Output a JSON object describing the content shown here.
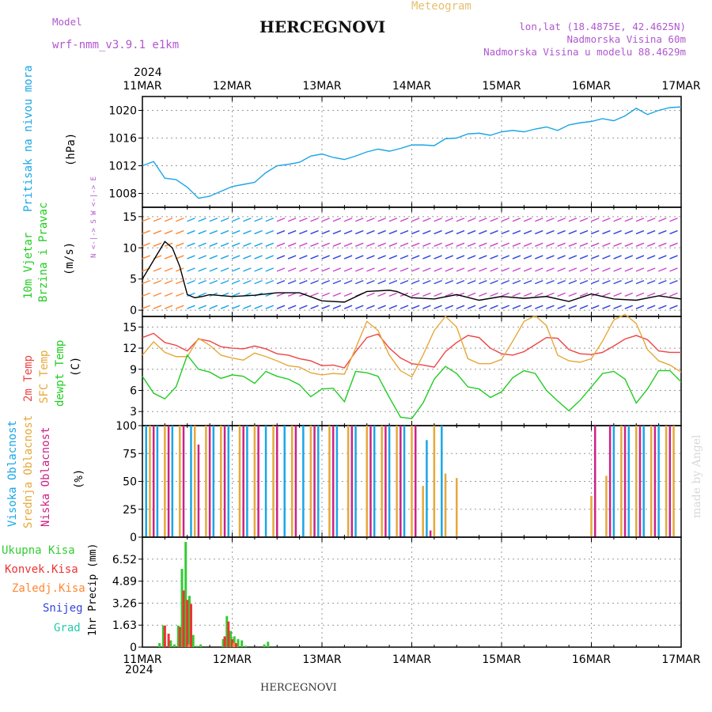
{
  "header": {
    "model_label": "Model",
    "model_name": "wrf-nmm_v3.9.1 e1km",
    "title": "HERCEGNOVI",
    "meteogram_label": "Meteogram",
    "coords": "lon,lat (18.4875E, 42.4625N)",
    "altitude": "Nadmorska Visina 60m",
    "model_altitude": "Nadmorska Visina u modelu 88.4629m"
  },
  "footer": {
    "station": "HERCEGNOVI"
  },
  "watermark": "made by Angel",
  "colors": {
    "pressure": "#1aa6e6",
    "wind_green": "#22cc22",
    "wind_purple": "#cc44cc",
    "temp": "#ee4444",
    "sfc": "#e6a83a",
    "dew": "#22cc22",
    "high_cloud": "#1aa6e6",
    "mid_cloud": "#e6a83a",
    "low_cloud": "#cc2288",
    "total_precip": "#33cc33",
    "conv_precip": "#ee3333",
    "frozen_precip": "#ff8833",
    "snow": "#3344dd",
    "graupel": "#22ccaa"
  },
  "axes": {
    "year_top": "2024",
    "year_bottom": "2024",
    "dates": [
      "11MAR",
      "12MAR",
      "13MAR",
      "14MAR",
      "15MAR",
      "16MAR",
      "17MAR"
    ]
  },
  "labels": {
    "pressure_1": "Pritisak na nivou mora",
    "pressure_unit": "(hPa)",
    "wind_1": "10m Vjetar",
    "wind_2": "Brzina i Pravac",
    "wind_unit": "(m/s)",
    "compass": "N <-|-> S   W <-|-> E",
    "temp_1": "2m Temp",
    "temp_2": "SFC Temp",
    "temp_3": "dewpt Temp",
    "temp_unit": "(C)",
    "cloud_1": "Visoka Oblacnost",
    "cloud_2": "Srednja Oblacnost",
    "cloud_3": "Niska Oblacnost",
    "cloud_unit": "(%)",
    "precip_1": "Ukupna Kisa",
    "precip_2": "Konvek.Kisa",
    "precip_3": "Zaledj.Kisa",
    "precip_4": "Snijeg",
    "precip_5": "Grad",
    "precip_unit": "1hr Precip (mm)"
  },
  "chart_data": [
    {
      "type": "line",
      "name": "pressure",
      "x_unit": "hours since 11MAR 00Z",
      "ylim": [
        1006,
        1022
      ],
      "yticks": [
        1008,
        1012,
        1016,
        1020
      ],
      "grid": true,
      "series": [
        {
          "name": "Pritisak na nivou mora",
          "x": [
            0,
            3,
            6,
            9,
            12,
            15,
            18,
            21,
            24,
            27,
            30,
            33,
            36,
            39,
            42,
            45,
            48,
            51,
            54,
            57,
            60,
            63,
            66,
            69,
            72,
            75,
            78,
            81,
            84,
            87,
            90,
            93,
            96,
            99,
            102,
            105,
            108,
            111,
            114,
            117,
            120,
            123,
            126,
            129,
            132,
            135,
            138,
            141,
            144
          ],
          "values": [
            1012,
            1012.6,
            1010.2,
            1010.0,
            1008.9,
            1007.3,
            1007.6,
            1008.3,
            1009.0,
            1009.3,
            1009.6,
            1011.0,
            1012.0,
            1012.2,
            1012.5,
            1013.4,
            1013.7,
            1013.2,
            1012.9,
            1013.4,
            1014.0,
            1014.4,
            1014.1,
            1014.5,
            1015.0,
            1015.0,
            1014.9,
            1015.9,
            1016.0,
            1016.6,
            1016.7,
            1016.4,
            1016.9,
            1017.1,
            1016.9,
            1017.3,
            1017.6,
            1017.1,
            1017.9,
            1018.2,
            1018.4,
            1018.8,
            1018.5,
            1019.2,
            1020.3,
            1019.4,
            1020.0,
            1020.4,
            1020.5
          ]
        }
      ]
    },
    {
      "type": "line",
      "name": "wind",
      "x_unit": "hours since 11MAR 00Z",
      "ylim": [
        -1,
        16.5
      ],
      "yticks": [
        0,
        5,
        10,
        15
      ],
      "grid": true,
      "series": [
        {
          "name": "10m wind speed",
          "x": [
            0,
            3,
            6,
            8,
            10,
            12,
            14,
            16,
            18,
            24,
            30,
            36,
            42,
            48,
            54,
            60,
            66,
            68,
            70,
            72,
            78,
            84,
            90,
            96,
            102,
            108,
            114,
            120,
            126,
            132,
            138,
            144
          ],
          "values": [
            5,
            8,
            11,
            10,
            7,
            2.5,
            2,
            2.2,
            2.5,
            2.2,
            2.4,
            2.8,
            2.8,
            1.5,
            1.3,
            3,
            3.2,
            3.0,
            2.5,
            2,
            1.8,
            2.5,
            1.6,
            2.2,
            1.9,
            2.2,
            1.4,
            2.6,
            1.8,
            1.6,
            2.3,
            1.8
          ]
        }
      ]
    },
    {
      "type": "line",
      "name": "temperature",
      "x_unit": "hours since 11MAR 00Z",
      "ylim": [
        1,
        16.5
      ],
      "yticks": [
        3,
        6,
        9,
        12,
        15
      ],
      "grid": true,
      "series": [
        {
          "name": "2m Temp",
          "x": [
            0,
            3,
            6,
            9,
            12,
            15,
            18,
            21,
            24,
            27,
            30,
            33,
            36,
            39,
            42,
            45,
            48,
            51,
            54,
            57,
            60,
            63,
            66,
            69,
            72,
            75,
            78,
            81,
            84,
            87,
            90,
            93,
            96,
            99,
            102,
            105,
            108,
            111,
            114,
            117,
            120,
            123,
            126,
            129,
            132,
            135,
            138,
            141,
            144
          ],
          "values": [
            13.5,
            14.1,
            12.8,
            12.4,
            11.6,
            13.3,
            13.0,
            12.2,
            12.0,
            11.9,
            12.3,
            11.9,
            11.2,
            11.0,
            10.5,
            10.2,
            9.5,
            9.6,
            9.2,
            11.5,
            13.5,
            14.0,
            12.0,
            10.6,
            9.8,
            9.6,
            9.3,
            11.5,
            12.8,
            13.8,
            13.5,
            12.0,
            11.2,
            11.0,
            11.5,
            12.5,
            13.5,
            13.4,
            11.8,
            11.2,
            11.1,
            11.4,
            12.3,
            13.3,
            13.8,
            13.2,
            11.6,
            11.4,
            11.4
          ]
        },
        {
          "name": "SFC Temp",
          "x": [
            0,
            3,
            6,
            9,
            12,
            15,
            18,
            21,
            24,
            27,
            30,
            33,
            36,
            39,
            42,
            45,
            48,
            51,
            54,
            57,
            60,
            63,
            66,
            69,
            72,
            75,
            78,
            81,
            84,
            87,
            90,
            93,
            96,
            99,
            102,
            105,
            108,
            111,
            114,
            117,
            120,
            123,
            126,
            129,
            132,
            135,
            138,
            141,
            144
          ],
          "values": [
            11.0,
            12.9,
            11.4,
            10.8,
            10.8,
            13.4,
            12.4,
            11.0,
            10.6,
            10.3,
            11.3,
            10.8,
            10.2,
            9.5,
            9.3,
            8.5,
            8.2,
            8.4,
            8.3,
            12.0,
            15.8,
            14.5,
            11.0,
            8.8,
            7.9,
            11.0,
            14.5,
            16.5,
            15.0,
            10.5,
            9.8,
            9.8,
            10.4,
            13.0,
            15.8,
            16.6,
            15.2,
            11.0,
            10.2,
            10.0,
            10.5,
            13.0,
            16.0,
            16.8,
            15.5,
            11.8,
            10.2,
            9.6,
            8.6
          ]
        },
        {
          "name": "dewpt Temp",
          "x": [
            0,
            3,
            6,
            9,
            12,
            15,
            18,
            21,
            24,
            27,
            30,
            33,
            36,
            39,
            42,
            45,
            48,
            51,
            54,
            57,
            60,
            63,
            66,
            69,
            72,
            75,
            78,
            81,
            84,
            87,
            90,
            93,
            96,
            99,
            102,
            105,
            108,
            111,
            114,
            117,
            120,
            123,
            126,
            129,
            132,
            135,
            138,
            141,
            144
          ],
          "values": [
            8.0,
            5.6,
            4.8,
            6.5,
            11.0,
            9.0,
            8.6,
            7.7,
            8.2,
            8.0,
            7.0,
            8.7,
            8.0,
            7.6,
            6.8,
            5.1,
            6.2,
            6.3,
            4.4,
            8.7,
            8.5,
            8.0,
            5.0,
            2.2,
            2.0,
            4.2,
            7.6,
            9.4,
            8.4,
            6.5,
            6.2,
            5.0,
            5.8,
            7.8,
            8.8,
            8.4,
            6.0,
            4.5,
            3.1,
            4.6,
            6.5,
            8.4,
            8.7,
            7.6,
            4.2,
            6.2,
            8.8,
            8.8,
            7.2
          ]
        }
      ]
    },
    {
      "type": "bar",
      "name": "cloud cover",
      "x_unit": "hours since 11MAR 00Z",
      "ylim": [
        0,
        100
      ],
      "yticks": [
        0,
        25,
        50,
        75,
        100
      ],
      "grid": true,
      "series": [
        {
          "name": "Visoka Oblacnost",
          "x": [
            1,
            4,
            8,
            13,
            19,
            23,
            28,
            33,
            38,
            43,
            47,
            52,
            57,
            62,
            66,
            70,
            76,
            80,
            126,
            130,
            134,
            138
          ],
          "values": [
            100,
            100,
            100,
            100,
            100,
            100,
            100,
            100,
            100,
            100,
            100,
            100,
            100,
            100,
            100,
            100,
            87,
            100,
            100,
            100,
            100,
            100
          ]
        },
        {
          "name": "Srednja Oblacnost",
          "x": [
            2,
            6,
            10,
            14,
            17,
            21,
            26,
            30,
            35,
            40,
            45,
            50,
            55,
            60,
            64,
            68,
            72,
            75,
            78,
            81,
            84,
            120,
            124,
            128,
            132,
            136,
            140,
            142
          ],
          "values": [
            100,
            100,
            100,
            100,
            100,
            100,
            100,
            100,
            100,
            100,
            100,
            100,
            100,
            100,
            100,
            100,
            100,
            46,
            100,
            57,
            53,
            37,
            55,
            100,
            100,
            100,
            100,
            100
          ]
        },
        {
          "name": "Niska Oblacnost",
          "x": [
            3,
            7,
            11,
            15,
            18,
            22,
            27,
            31,
            36,
            41,
            46,
            51,
            56,
            61,
            65,
            69,
            73,
            77,
            121,
            125,
            129,
            133,
            137,
            141
          ],
          "values": [
            100,
            100,
            100,
            83,
            100,
            100,
            100,
            100,
            100,
            100,
            100,
            100,
            100,
            100,
            100,
            100,
            100,
            6,
            100,
            100,
            100,
            100,
            100,
            100
          ]
        }
      ]
    },
    {
      "type": "bar",
      "name": "precipitation",
      "x_unit": "hours since 11MAR 00Z",
      "ylim": [
        0,
        8.15
      ],
      "yticks": [
        0,
        1.63,
        3.26,
        4.89,
        6.52
      ],
      "grid": true,
      "series": [
        {
          "name": "Ukupna Kisa",
          "x": [
            5,
            6,
            8,
            9,
            10,
            11,
            12,
            13,
            14,
            15,
            16,
            22,
            23,
            24,
            25,
            26,
            27,
            28,
            33,
            34
          ],
          "values": [
            0.3,
            1.6,
            0.5,
            0.2,
            1.6,
            5.8,
            7.8,
            3.8,
            0.9,
            0.1,
            0.2,
            0.6,
            2.3,
            1.2,
            0.8,
            0.6,
            0.5,
            0.1,
            0.2,
            0.4
          ]
        },
        {
          "name": "Konvek.Kisa",
          "x": [
            6,
            7,
            10,
            11,
            12,
            13,
            22,
            23,
            24,
            25
          ],
          "values": [
            1.6,
            1.0,
            1.5,
            4.2,
            3.5,
            3.2,
            0.8,
            1.9,
            0.6,
            0.3
          ]
        },
        {
          "name": "Zaledj.Kisa",
          "x": [
            12,
            24
          ],
          "values": [
            0.2,
            0.3
          ]
        },
        {
          "name": "Snijeg",
          "x": [],
          "values": []
        },
        {
          "name": "Grad",
          "x": [],
          "values": []
        }
      ]
    }
  ]
}
